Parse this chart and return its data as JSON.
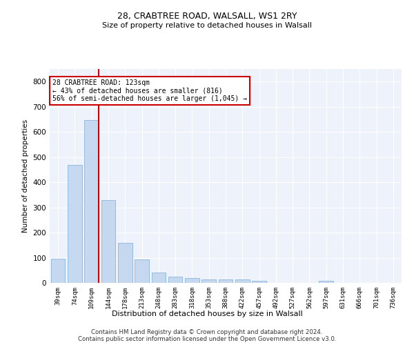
{
  "title": "28, CRABTREE ROAD, WALSALL, WS1 2RY",
  "subtitle": "Size of property relative to detached houses in Walsall",
  "xlabel": "Distribution of detached houses by size in Walsall",
  "ylabel": "Number of detached properties",
  "categories": [
    "39sqm",
    "74sqm",
    "109sqm",
    "144sqm",
    "178sqm",
    "213sqm",
    "248sqm",
    "283sqm",
    "318sqm",
    "353sqm",
    "388sqm",
    "422sqm",
    "457sqm",
    "492sqm",
    "527sqm",
    "562sqm",
    "597sqm",
    "631sqm",
    "666sqm",
    "701sqm",
    "736sqm"
  ],
  "values": [
    95,
    470,
    648,
    328,
    158,
    92,
    40,
    25,
    18,
    15,
    14,
    14,
    9,
    0,
    0,
    0,
    8,
    0,
    0,
    0,
    0
  ],
  "bar_color": "#c5d8f0",
  "bar_edge_color": "#7aadd4",
  "annotation_box_text_line1": "28 CRABTREE ROAD: 123sqm",
  "annotation_box_text_line2": "← 43% of detached houses are smaller (816)",
  "annotation_box_text_line3": "56% of semi-detached houses are larger (1,045) →",
  "annotation_box_color": "#cc0000",
  "background_color": "#eef2fb",
  "grid_color": "#ffffff",
  "ylim": [
    0,
    850
  ],
  "yticks": [
    0,
    100,
    200,
    300,
    400,
    500,
    600,
    700,
    800
  ],
  "footer_line1": "Contains HM Land Registry data © Crown copyright and database right 2024.",
  "footer_line2": "Contains public sector information licensed under the Open Government Licence v3.0.",
  "title_fontsize": 9,
  "subtitle_fontsize": 8
}
